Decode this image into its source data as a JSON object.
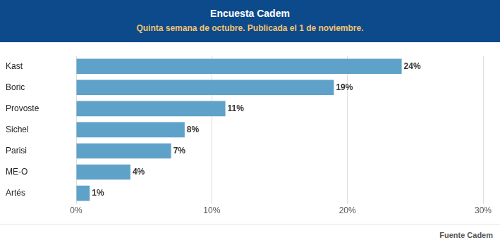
{
  "chart_data": {
    "type": "bar",
    "title": "Encuesta Cadem",
    "subtitle": "Quinta semana de octubre. Publicada el 1 de noviembre.",
    "annotations": [
      "Fuente Cadem"
    ],
    "orientation": "horizontal",
    "categories": [
      "Kast",
      "Boric",
      "Provoste",
      "Sichel",
      "Parisi",
      "ME-O",
      "Artés"
    ],
    "values": [
      24,
      19,
      11,
      8,
      7,
      4,
      1
    ],
    "value_labels": [
      "24%",
      "19%",
      "11%",
      "8%",
      "7%",
      "4%",
      "1%"
    ],
    "data_labels": true,
    "color": "#5fa2c9",
    "xlim": [
      0,
      30
    ],
    "xticks": [
      {
        "value": 0,
        "label": "0%"
      },
      {
        "value": 10,
        "label": "10%"
      },
      {
        "value": 20,
        "label": "20%"
      },
      {
        "value": 30,
        "label": "30%"
      }
    ],
    "grid": true
  }
}
